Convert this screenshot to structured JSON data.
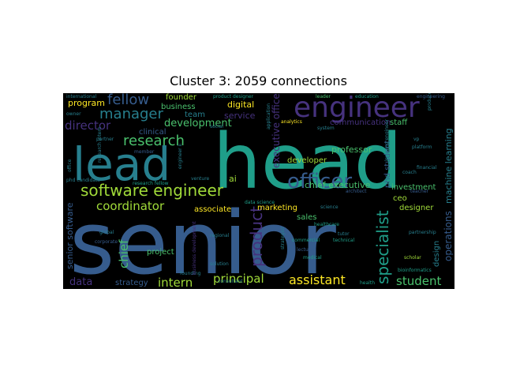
{
  "title": "Cluster 3: 2059 connections",
  "colors": {
    "background": "#000000",
    "purple": "#46327e",
    "teal": "#1f9e89",
    "blue": "#365c8d",
    "slate": "#277f8e",
    "green": "#4ac16d",
    "yellowgreen": "#a0da39",
    "yellow": "#fde725",
    "indigo": "#440154"
  },
  "words": [
    {
      "text": "senior",
      "color": "blue"
    },
    {
      "text": "head",
      "color": "teal"
    },
    {
      "text": "lead",
      "color": "slate"
    },
    {
      "text": "engineer",
      "color": "purple"
    },
    {
      "text": "software engineer",
      "color": "yellowgreen"
    },
    {
      "text": "officer",
      "color": "blue"
    },
    {
      "text": "research",
      "color": "green"
    },
    {
      "text": "manager",
      "color": "slate"
    },
    {
      "text": "fellow",
      "color": "blue"
    },
    {
      "text": "director",
      "color": "purple"
    },
    {
      "text": "specialist",
      "color": "teal"
    },
    {
      "text": "product",
      "color": "purple"
    },
    {
      "text": "coordinator",
      "color": "yellowgreen"
    },
    {
      "text": "principal",
      "color": "yellowgreen"
    },
    {
      "text": "assistant",
      "color": "yellow"
    },
    {
      "text": "intern",
      "color": "yellowgreen"
    },
    {
      "text": "student",
      "color": "green"
    },
    {
      "text": "data",
      "color": "purple"
    },
    {
      "text": "chief",
      "color": "green"
    },
    {
      "text": "development",
      "color": "green"
    },
    {
      "text": "program",
      "color": "yellow"
    },
    {
      "text": "business",
      "color": "green"
    },
    {
      "text": "founder",
      "color": "yellowgreen"
    },
    {
      "text": "digital",
      "color": "yellow"
    },
    {
      "text": "service",
      "color": "purple"
    },
    {
      "text": "team",
      "color": "slate"
    },
    {
      "text": "clinical",
      "color": "blue"
    },
    {
      "text": "executive officer",
      "color": "purple"
    },
    {
      "text": "communication",
      "color": "purple"
    },
    {
      "text": "staff",
      "color": "green"
    },
    {
      "text": "machine learning",
      "color": "slate"
    },
    {
      "text": "professor",
      "color": "green"
    },
    {
      "text": "developer",
      "color": "yellowgreen"
    },
    {
      "text": "chief executive",
      "color": "green"
    },
    {
      "text": "phd student",
      "color": "blue"
    },
    {
      "text": "investment",
      "color": "green"
    },
    {
      "text": "ceo",
      "color": "yellowgreen"
    },
    {
      "text": "designer",
      "color": "yellowgreen"
    },
    {
      "text": "operations",
      "color": "blue"
    },
    {
      "text": "sales",
      "color": "green"
    },
    {
      "text": "marketing",
      "color": "yellow"
    },
    {
      "text": "associate",
      "color": "yellow"
    },
    {
      "text": "ai",
      "color": "yellowgreen"
    },
    {
      "text": "project",
      "color": "green"
    },
    {
      "text": "strategy",
      "color": "blue"
    },
    {
      "text": "senior software",
      "color": "blue"
    },
    {
      "text": "design",
      "color": "slate"
    },
    {
      "text": "data science",
      "color": "teal"
    },
    {
      "text": "research fellow",
      "color": "teal"
    },
    {
      "text": "analytics",
      "color": "yellow"
    },
    {
      "text": "education",
      "color": "teal"
    },
    {
      "text": "engineering",
      "color": "blue"
    },
    {
      "text": "leader",
      "color": "green"
    },
    {
      "text": "product designer",
      "color": "teal"
    },
    {
      "text": "healthcare",
      "color": "teal"
    },
    {
      "text": "commercial",
      "color": "teal"
    },
    {
      "text": "technical",
      "color": "teal"
    },
    {
      "text": "partnership",
      "color": "slate"
    },
    {
      "text": "bioinformatics",
      "color": "teal"
    },
    {
      "text": "scholar",
      "color": "yellowgreen"
    },
    {
      "text": "health",
      "color": "teal"
    },
    {
      "text": "medical",
      "color": "teal"
    },
    {
      "text": "tutor",
      "color": "slate"
    },
    {
      "text": "lecturer",
      "color": "blue"
    },
    {
      "text": "regional",
      "color": "slate"
    },
    {
      "text": "solution",
      "color": "slate"
    },
    {
      "text": "consultant",
      "color": "slate"
    },
    {
      "text": "founding",
      "color": "slate"
    },
    {
      "text": "business development",
      "color": "purple"
    },
    {
      "text": "global",
      "color": "slate"
    },
    {
      "text": "corporate",
      "color": "blue"
    },
    {
      "text": "phd candidate",
      "color": "slate"
    },
    {
      "text": "member",
      "color": "blue"
    },
    {
      "text": "architect",
      "color": "blue"
    },
    {
      "text": "teacher",
      "color": "blue"
    },
    {
      "text": "platform",
      "color": "slate"
    },
    {
      "text": "coach",
      "color": "slate"
    },
    {
      "text": "vp",
      "color": "slate"
    },
    {
      "text": "system",
      "color": "slate"
    },
    {
      "text": "social",
      "color": "slate"
    },
    {
      "text": "financial",
      "color": "slate"
    },
    {
      "text": "science",
      "color": "slate"
    },
    {
      "text": "partner",
      "color": "slate"
    },
    {
      "text": "owner",
      "color": "slate"
    },
    {
      "text": "office",
      "color": "slate"
    },
    {
      "text": "research intern",
      "color": "slate"
    },
    {
      "text": "learning engineer",
      "color": "slate"
    },
    {
      "text": "engineer ii",
      "color": "slate"
    },
    {
      "text": "strategist",
      "color": "slate"
    },
    {
      "text": "venture",
      "color": "slate"
    },
    {
      "text": "application",
      "color": "slate"
    },
    {
      "text": "international",
      "color": "slate"
    },
    {
      "text": "producer",
      "color": "slate"
    }
  ]
}
